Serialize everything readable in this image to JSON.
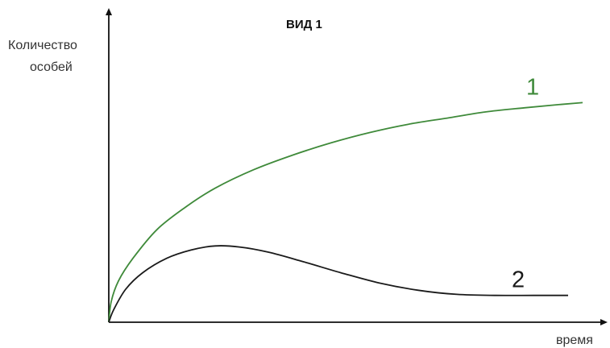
{
  "chart_data": {
    "type": "line",
    "title": "ВИД 1",
    "ylabel_lines": [
      "Количество",
      "особей"
    ],
    "xlabel": "время",
    "grid": false,
    "axis_ticks": false,
    "series": [
      {
        "name": "1",
        "color": "#3f8a3a",
        "label_position": "end-top",
        "points": [
          [
            0.0,
            0.0
          ],
          [
            0.005,
            0.1
          ],
          [
            0.02,
            0.2
          ],
          [
            0.05,
            0.31
          ],
          [
            0.1,
            0.45
          ],
          [
            0.16,
            0.56
          ],
          [
            0.22,
            0.65
          ],
          [
            0.3,
            0.74
          ],
          [
            0.38,
            0.81
          ],
          [
            0.46,
            0.87
          ],
          [
            0.54,
            0.92
          ],
          [
            0.62,
            0.96
          ],
          [
            0.7,
            0.99
          ],
          [
            0.78,
            1.02
          ],
          [
            0.86,
            1.04
          ],
          [
            0.93,
            1.055
          ],
          [
            0.98,
            1.065
          ]
        ]
      },
      {
        "name": "2",
        "color": "#1a1a1a",
        "label_position": "end-top",
        "points": [
          [
            0.0,
            0.0
          ],
          [
            0.01,
            0.06
          ],
          [
            0.035,
            0.16
          ],
          [
            0.07,
            0.24
          ],
          [
            0.12,
            0.31
          ],
          [
            0.17,
            0.35
          ],
          [
            0.22,
            0.37
          ],
          [
            0.27,
            0.365
          ],
          [
            0.33,
            0.34
          ],
          [
            0.4,
            0.295
          ],
          [
            0.48,
            0.24
          ],
          [
            0.56,
            0.19
          ],
          [
            0.64,
            0.155
          ],
          [
            0.72,
            0.135
          ],
          [
            0.8,
            0.13
          ],
          [
            0.88,
            0.13
          ],
          [
            0.95,
            0.13
          ]
        ]
      }
    ]
  }
}
